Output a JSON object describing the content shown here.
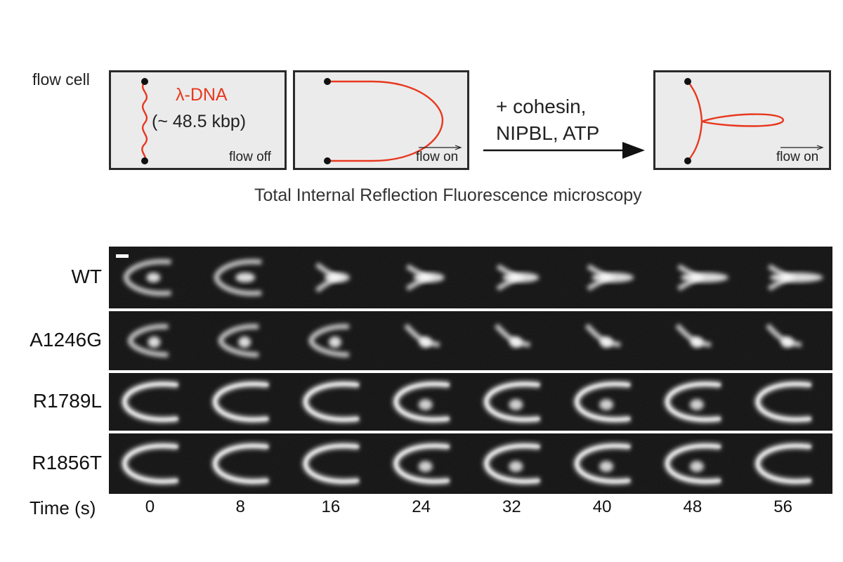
{
  "schematic": {
    "flow_cell_label": "flow cell",
    "dna_label": "λ-DNA",
    "dna_size": "(~ 48.5 kbp)",
    "flow_off": "flow off",
    "flow_on_1": "flow on",
    "reaction_line1": "+ cohesin,",
    "reaction_line2": "NIPBL, ATP",
    "flow_on_2": "flow on",
    "method": "Total Internal Reflection Fluorescence microscopy",
    "dna_color": "#e8381f"
  },
  "montage": {
    "rows": [
      {
        "label": "WT",
        "shape": "loop-extrusion"
      },
      {
        "label": "A1246G",
        "shape": "partial-extrusion"
      },
      {
        "label": "R1789L",
        "shape": "u-shape"
      },
      {
        "label": "R1856T",
        "shape": "u-shape"
      }
    ],
    "time_label": "Time (s)",
    "times": [
      "0",
      "8",
      "16",
      "24",
      "32",
      "40",
      "48",
      "56"
    ]
  }
}
